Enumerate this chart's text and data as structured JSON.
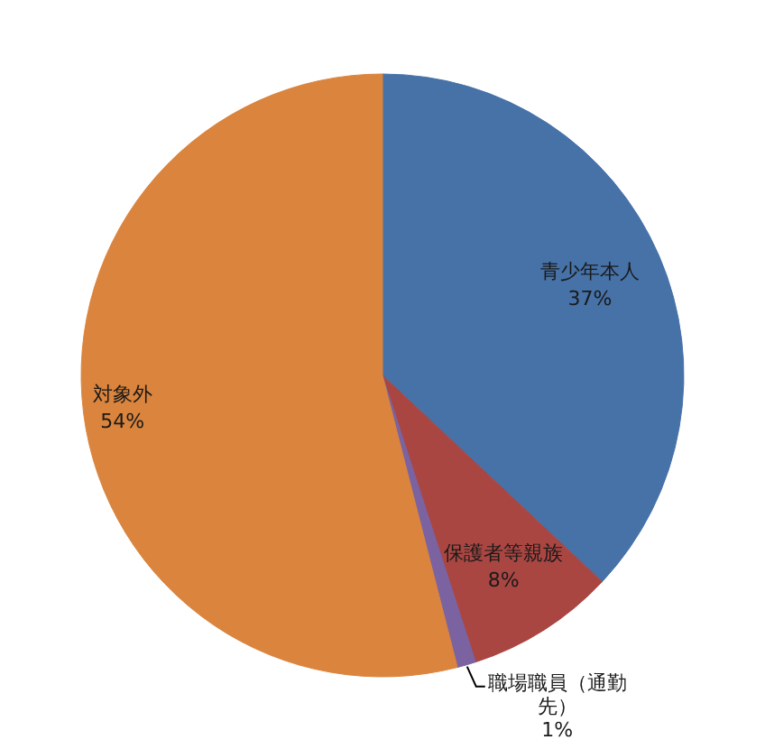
{
  "chart_data": {
    "type": "pie",
    "categories": [
      "青少年本人",
      "保護者等親族",
      "職場職員（通勤先）",
      "対象外"
    ],
    "values": [
      37,
      8,
      1,
      54
    ],
    "colors": [
      "#4672a8",
      "#aa4642",
      "#7b62a0",
      "#da843d"
    ],
    "value_labels": [
      "37%",
      "8%",
      "1%",
      "54%"
    ]
  }
}
